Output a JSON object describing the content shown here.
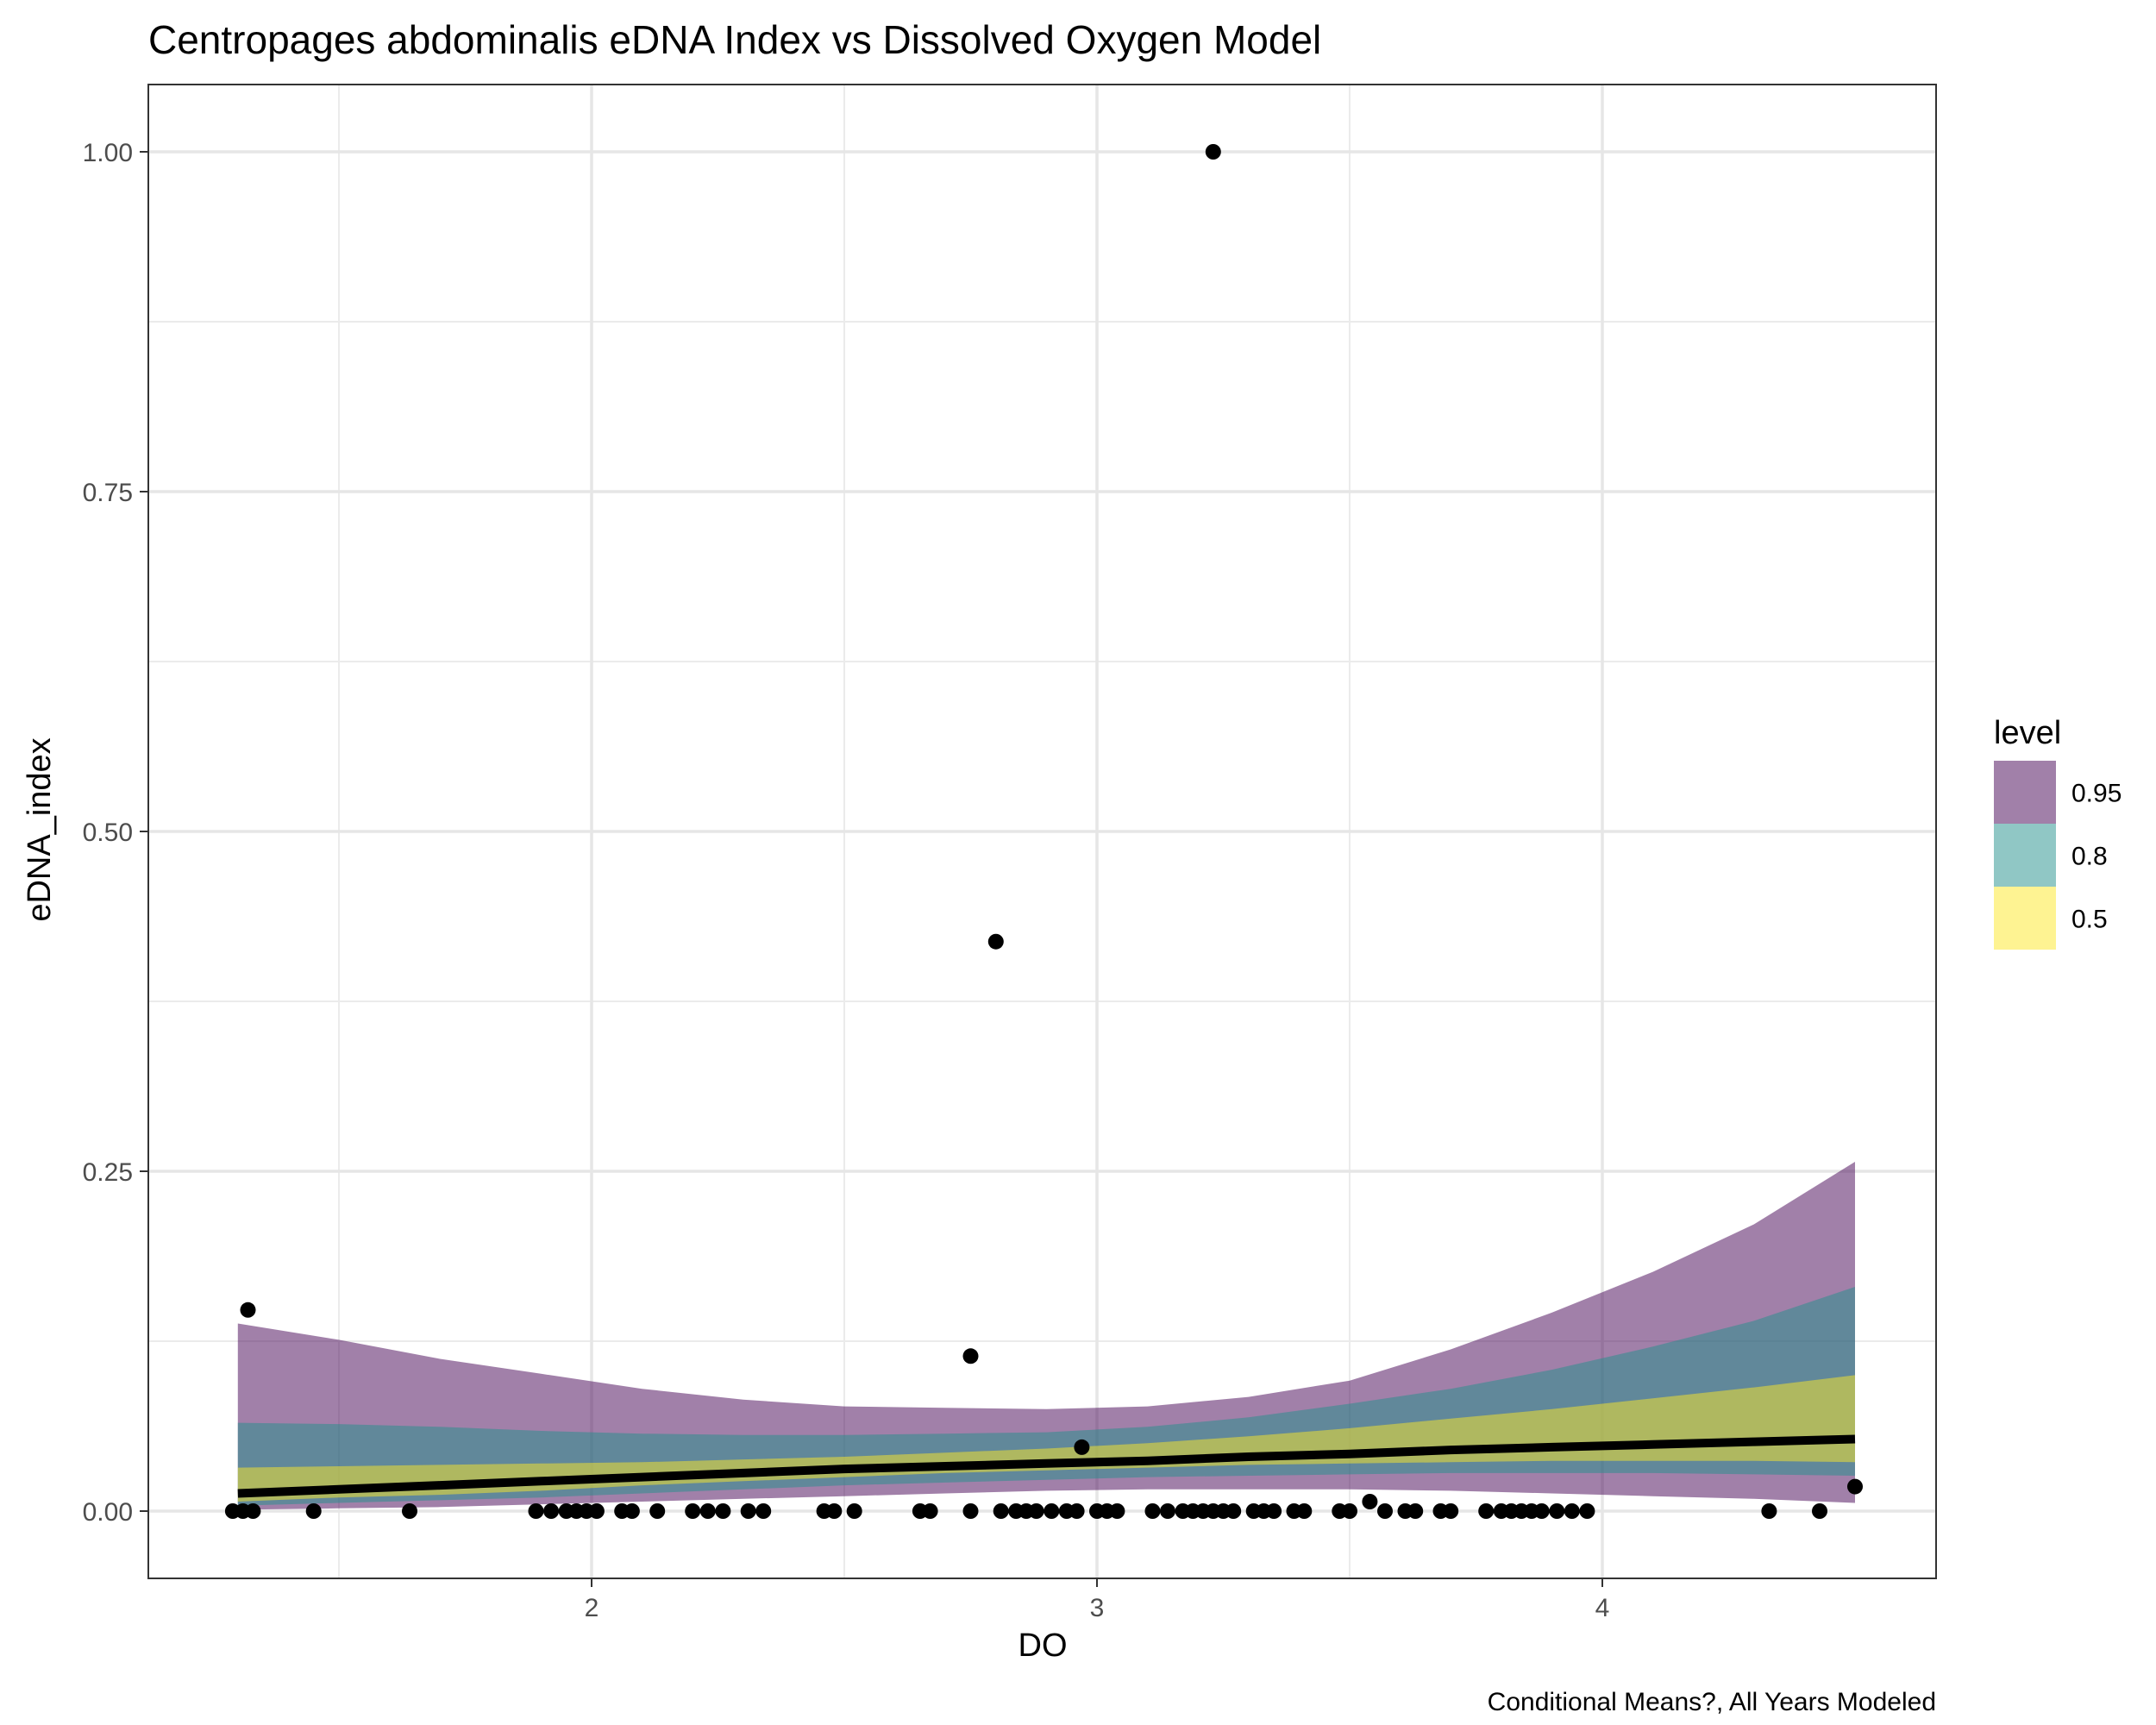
{
  "chart_data": {
    "type": "line",
    "title": "Centropages abdominalis eDNA Index vs Dissolved Oxygen Model",
    "xlabel": "DO",
    "ylabel": "eDNA_index",
    "caption": "Conditional Means?, All Years Modeled",
    "xlim": [
      1.3,
      4.5
    ],
    "ylim": [
      -0.05,
      1.05
    ],
    "x_ticks": [
      2,
      3,
      4
    ],
    "x_tick_labels": [
      "2",
      "3",
      "4"
    ],
    "y_ticks": [
      0,
      0.25,
      0.5,
      0.75,
      1.0
    ],
    "y_tick_labels": [
      "0.00",
      "0.25",
      "0.50",
      "0.75",
      "1.00"
    ],
    "grid": true,
    "legend": {
      "title": "level",
      "placement": "right",
      "items": [
        {
          "label": "0.95",
          "color": "#440154"
        },
        {
          "label": "0.8",
          "color": "#21908C"
        },
        {
          "label": "0.5",
          "color": "#FDE725"
        }
      ]
    },
    "bands": {
      "x": [
        1.3,
        1.5,
        1.7,
        1.9,
        2.1,
        2.3,
        2.5,
        2.7,
        2.9,
        3.1,
        3.3,
        3.5,
        3.7,
        3.9,
        4.1,
        4.3,
        4.5
      ],
      "levels": [
        {
          "level": "0.95",
          "color": "#440154",
          "opacity": 0.5,
          "lower": [
            0.001,
            0.002,
            0.003,
            0.005,
            0.007,
            0.009,
            0.011,
            0.013,
            0.015,
            0.016,
            0.016,
            0.016,
            0.015,
            0.013,
            0.011,
            0.009,
            0.006
          ],
          "upper": [
            0.138,
            0.126,
            0.112,
            0.101,
            0.09,
            0.082,
            0.077,
            0.076,
            0.075,
            0.077,
            0.084,
            0.096,
            0.119,
            0.146,
            0.176,
            0.211,
            0.257
          ]
        },
        {
          "level": "0.8",
          "color": "#21908C",
          "opacity": 0.5,
          "lower": [
            0.004,
            0.006,
            0.008,
            0.01,
            0.013,
            0.016,
            0.019,
            0.021,
            0.023,
            0.025,
            0.026,
            0.027,
            0.028,
            0.028,
            0.028,
            0.027,
            0.026
          ],
          "upper": [
            0.065,
            0.064,
            0.062,
            0.059,
            0.057,
            0.056,
            0.056,
            0.057,
            0.058,
            0.062,
            0.069,
            0.079,
            0.09,
            0.104,
            0.121,
            0.14,
            0.165
          ]
        },
        {
          "level": "0.5",
          "color": "#FDE725",
          "opacity": 0.5,
          "lower": [
            0.007,
            0.01,
            0.012,
            0.015,
            0.019,
            0.022,
            0.025,
            0.028,
            0.03,
            0.032,
            0.034,
            0.035,
            0.036,
            0.037,
            0.037,
            0.037,
            0.036
          ],
          "upper": [
            0.032,
            0.033,
            0.034,
            0.035,
            0.036,
            0.038,
            0.04,
            0.043,
            0.046,
            0.05,
            0.055,
            0.061,
            0.068,
            0.075,
            0.083,
            0.091,
            0.1
          ]
        }
      ]
    },
    "series": [
      {
        "x": [
          1.3,
          1.5,
          1.7,
          1.9,
          2.1,
          2.3,
          2.5,
          2.7,
          2.9,
          3.1,
          3.3,
          3.5,
          3.7,
          3.9,
          4.1,
          4.3,
          4.5
        ],
        "y": [
          0.013,
          0.016,
          0.019,
          0.022,
          0.025,
          0.028,
          0.031,
          0.033,
          0.035,
          0.037,
          0.04,
          0.042,
          0.045,
          0.047,
          0.049,
          0.051,
          0.053
        ],
        "color": "#000000"
      }
    ],
    "points": [
      {
        "x": 1.29,
        "y": 0
      },
      {
        "x": 1.31,
        "y": 0
      },
      {
        "x": 1.33,
        "y": 0
      },
      {
        "x": 1.32,
        "y": 0.148
      },
      {
        "x": 1.45,
        "y": 0
      },
      {
        "x": 1.64,
        "y": 0
      },
      {
        "x": 1.89,
        "y": 0
      },
      {
        "x": 1.92,
        "y": 0
      },
      {
        "x": 1.95,
        "y": 0
      },
      {
        "x": 1.97,
        "y": 0
      },
      {
        "x": 1.99,
        "y": 0
      },
      {
        "x": 2.01,
        "y": 0
      },
      {
        "x": 2.06,
        "y": 0
      },
      {
        "x": 2.08,
        "y": 0
      },
      {
        "x": 2.13,
        "y": 0
      },
      {
        "x": 2.2,
        "y": 0
      },
      {
        "x": 2.23,
        "y": 0
      },
      {
        "x": 2.26,
        "y": 0
      },
      {
        "x": 2.31,
        "y": 0
      },
      {
        "x": 2.34,
        "y": 0
      },
      {
        "x": 2.46,
        "y": 0
      },
      {
        "x": 2.48,
        "y": 0
      },
      {
        "x": 2.52,
        "y": 0
      },
      {
        "x": 2.65,
        "y": 0
      },
      {
        "x": 2.67,
        "y": 0
      },
      {
        "x": 2.75,
        "y": 0.114
      },
      {
        "x": 2.75,
        "y": 0
      },
      {
        "x": 2.8,
        "y": 0.419
      },
      {
        "x": 2.81,
        "y": 0
      },
      {
        "x": 2.84,
        "y": 0
      },
      {
        "x": 2.86,
        "y": 0
      },
      {
        "x": 2.88,
        "y": 0
      },
      {
        "x": 2.91,
        "y": 0
      },
      {
        "x": 2.94,
        "y": 0
      },
      {
        "x": 2.96,
        "y": 0
      },
      {
        "x": 2.97,
        "y": 0.047
      },
      {
        "x": 3.0,
        "y": 0
      },
      {
        "x": 3.02,
        "y": 0
      },
      {
        "x": 3.04,
        "y": 0
      },
      {
        "x": 3.11,
        "y": 0
      },
      {
        "x": 3.14,
        "y": 0
      },
      {
        "x": 3.17,
        "y": 0
      },
      {
        "x": 3.19,
        "y": 0
      },
      {
        "x": 3.21,
        "y": 0
      },
      {
        "x": 3.23,
        "y": 1.0
      },
      {
        "x": 3.23,
        "y": 0
      },
      {
        "x": 3.25,
        "y": 0
      },
      {
        "x": 3.27,
        "y": 0
      },
      {
        "x": 3.31,
        "y": 0
      },
      {
        "x": 3.33,
        "y": 0
      },
      {
        "x": 3.35,
        "y": 0
      },
      {
        "x": 3.39,
        "y": 0
      },
      {
        "x": 3.41,
        "y": 0
      },
      {
        "x": 3.48,
        "y": 0
      },
      {
        "x": 3.5,
        "y": 0
      },
      {
        "x": 3.54,
        "y": 0.007
      },
      {
        "x": 3.57,
        "y": 0
      },
      {
        "x": 3.61,
        "y": 0
      },
      {
        "x": 3.63,
        "y": 0
      },
      {
        "x": 3.68,
        "y": 0
      },
      {
        "x": 3.7,
        "y": 0
      },
      {
        "x": 3.77,
        "y": 0
      },
      {
        "x": 3.8,
        "y": 0
      },
      {
        "x": 3.82,
        "y": 0
      },
      {
        "x": 3.84,
        "y": 0
      },
      {
        "x": 3.86,
        "y": 0
      },
      {
        "x": 3.88,
        "y": 0
      },
      {
        "x": 3.91,
        "y": 0
      },
      {
        "x": 3.94,
        "y": 0
      },
      {
        "x": 3.97,
        "y": 0
      },
      {
        "x": 4.33,
        "y": 0
      },
      {
        "x": 4.43,
        "y": 0
      },
      {
        "x": 4.5,
        "y": 0.018
      }
    ]
  }
}
